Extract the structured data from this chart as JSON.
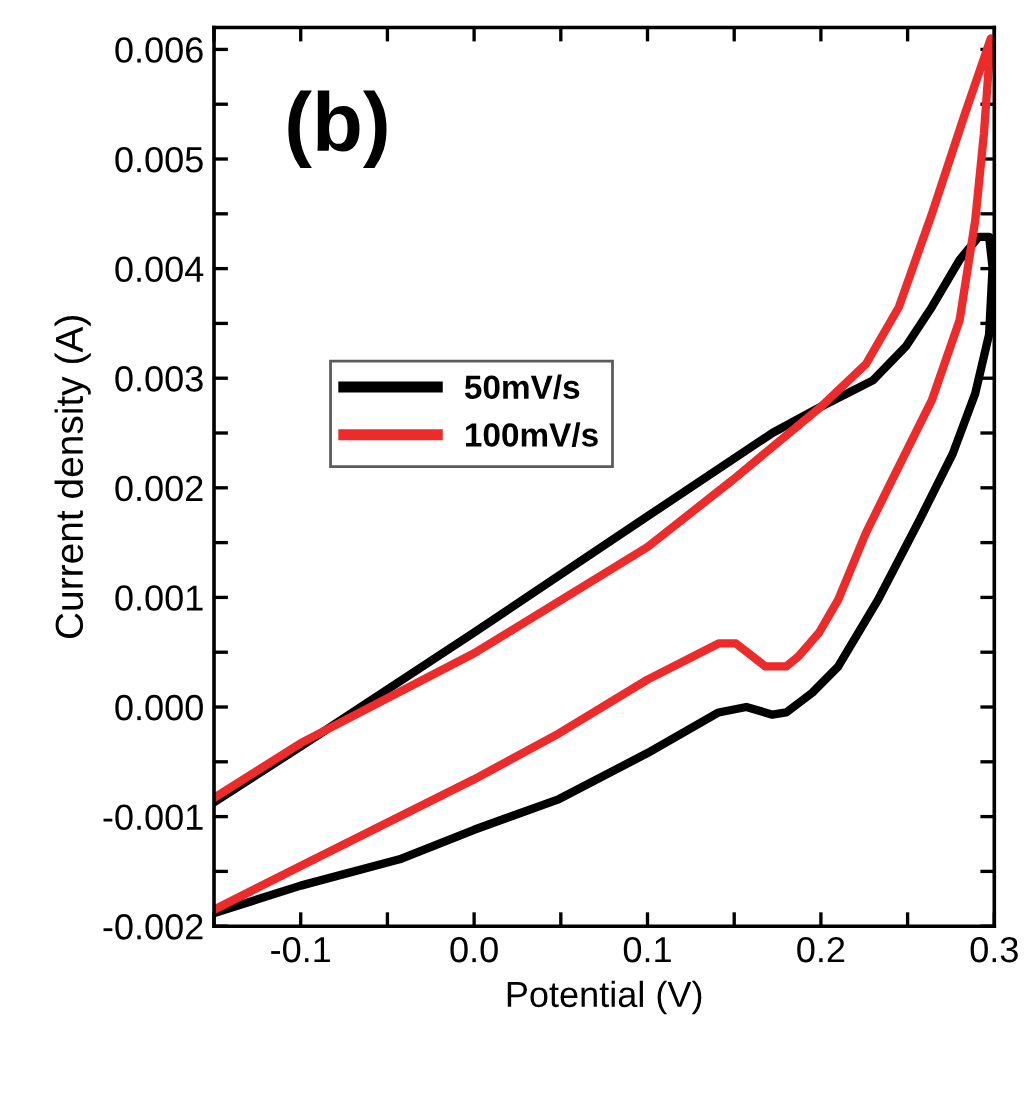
{
  "chart_data": {
    "type": "line",
    "xlabel": "Potential (V)",
    "ylabel": "Current density (A)",
    "annotations": [
      "(b)"
    ],
    "xlim": [
      -0.15,
      0.3
    ],
    "ylim": [
      -0.002,
      0.0062
    ],
    "xticks": [
      {
        "value": -0.15,
        "label": null
      },
      {
        "value": -0.1,
        "label": "-0.1"
      },
      {
        "value": -0.05,
        "label": null
      },
      {
        "value": 0.0,
        "label": "0.0"
      },
      {
        "value": 0.05,
        "label": null
      },
      {
        "value": 0.1,
        "label": "0.1"
      },
      {
        "value": 0.15,
        "label": null
      },
      {
        "value": 0.2,
        "label": "0.2"
      },
      {
        "value": 0.25,
        "label": null
      },
      {
        "value": 0.3,
        "label": "0.3"
      }
    ],
    "yticks": [
      {
        "value": -0.002,
        "label": "-0.002"
      },
      {
        "value": -0.0015,
        "label": null
      },
      {
        "value": -0.001,
        "label": "-0.001"
      },
      {
        "value": -0.0005,
        "label": null
      },
      {
        "value": 0.0,
        "label": "0.000"
      },
      {
        "value": 0.0005,
        "label": null
      },
      {
        "value": 0.001,
        "label": "0.001"
      },
      {
        "value": 0.0015,
        "label": null
      },
      {
        "value": 0.002,
        "label": "0.002"
      },
      {
        "value": 0.0025,
        "label": null
      },
      {
        "value": 0.003,
        "label": "0.003"
      },
      {
        "value": 0.0035,
        "label": null
      },
      {
        "value": 0.004,
        "label": "0.004"
      },
      {
        "value": 0.0045,
        "label": null
      },
      {
        "value": 0.005,
        "label": "0.005"
      },
      {
        "value": 0.0055,
        "label": null
      },
      {
        "value": 0.006,
        "label": "0.006"
      }
    ],
    "legend": "center",
    "grid": false,
    "marker": "none",
    "line_style": "solid",
    "series": [
      {
        "name": "50mV/s",
        "color": "#000000",
        "x": [
          -0.15,
          -0.1,
          0.0,
          0.1,
          0.172,
          0.2,
          0.23,
          0.249,
          0.264,
          0.28,
          0.291,
          0.297,
          0.299,
          0.297,
          0.289,
          0.276,
          0.257,
          0.233,
          0.21,
          0.195,
          0.18,
          0.172,
          0.157,
          0.141,
          0.1,
          0.049,
          0.0,
          -0.043,
          -0.1,
          -0.15
        ],
        "values": [
          -0.00087,
          -0.00036,
          0.00068,
          0.00174,
          0.0025,
          0.00274,
          0.00298,
          0.00329,
          0.00365,
          0.00408,
          0.00429,
          0.00429,
          0.00401,
          0.0034,
          0.00286,
          0.00231,
          0.00171,
          0.00098,
          0.00037,
          0.00013,
          -5e-05,
          -7e-05,
          0.0,
          -5e-05,
          -0.00042,
          -0.00084,
          -0.00112,
          -0.00139,
          -0.00163,
          -0.00188
        ]
      },
      {
        "name": "100mV/s",
        "color": "#ee2b2b",
        "x": [
          -0.15,
          -0.1,
          0.0,
          0.1,
          0.149,
          0.2,
          0.226,
          0.245,
          0.264,
          0.283,
          0.298,
          0.294,
          0.289,
          0.28,
          0.264,
          0.241,
          0.226,
          0.21,
          0.199,
          0.187,
          0.18,
          0.168,
          0.151,
          0.141,
          0.1,
          0.049,
          0.0,
          -0.1,
          -0.15
        ],
        "values": [
          -0.00083,
          -0.00033,
          0.00049,
          0.00146,
          0.00207,
          0.00274,
          0.00313,
          0.00365,
          0.0045,
          0.00541,
          0.0061,
          0.00523,
          0.00444,
          0.00353,
          0.0028,
          0.00207,
          0.00159,
          0.00098,
          0.00068,
          0.00046,
          0.00037,
          0.00037,
          0.00058,
          0.00058,
          0.00025,
          -0.00024,
          -0.00066,
          -0.00145,
          -0.00185
        ]
      }
    ]
  }
}
